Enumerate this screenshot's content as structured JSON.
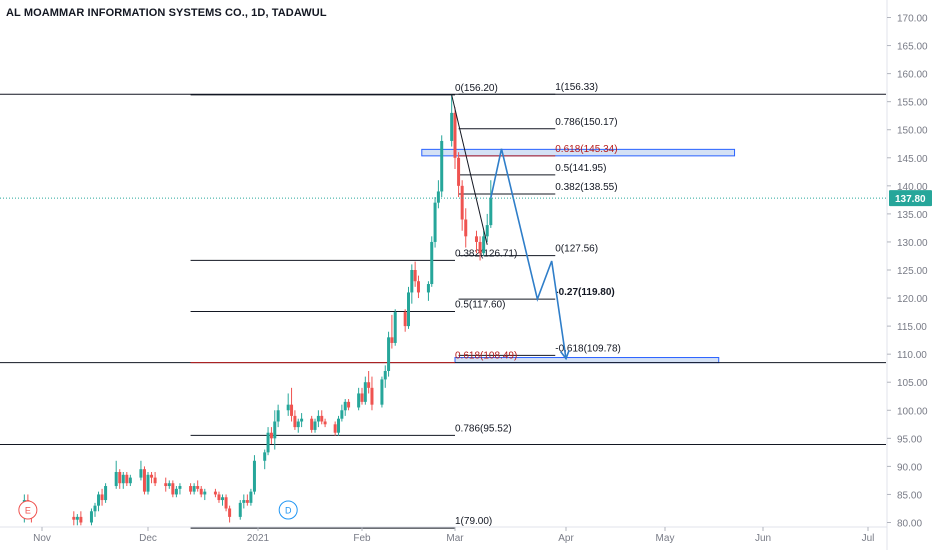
{
  "chart_title": "AL MOAMMAR INFORMATION SYSTEMS CO., 1D, TADAWUL",
  "colors": {
    "up": "#26a69a",
    "down": "#ef5350",
    "fib_line": "#131722",
    "fib_highlight": "#b71c1c",
    "zone_fill": "#c5d7f2",
    "zone_stroke": "#2962ff",
    "projection": "#2f7ec9",
    "price_tag": "#26a69a",
    "axis_text": "#787b86",
    "event_e": "#ef5350",
    "event_d": "#2196f3"
  },
  "chart_data": {
    "type": "candlestick",
    "y_axis": {
      "min": 80,
      "max": 172,
      "ticks": [
        "170.00",
        "165.00",
        "160.00",
        "155.00",
        "150.00",
        "145.00",
        "140.00",
        "135.00",
        "130.00",
        "125.00",
        "120.00",
        "115.00",
        "110.00",
        "105.00",
        "100.00",
        "95.00",
        "90.00",
        "85.00",
        "80.00"
      ],
      "tick_values": [
        170,
        165,
        160,
        155,
        150,
        145,
        140,
        135,
        130,
        125,
        120,
        115,
        110,
        105,
        100,
        95,
        90,
        85,
        80
      ]
    },
    "x_axis": {
      "labels": [
        "Nov",
        "Dec",
        "2021",
        "Feb",
        "Mar",
        "Apr",
        "May",
        "Jun",
        "Jul"
      ],
      "label_dates": [
        "2020-11-01",
        "2020-12-01",
        "2021-01-01",
        "2021-02-01",
        "2021-03-01",
        "2021-04-01",
        "2021-05-01",
        "2021-06-01",
        "2021-07-01"
      ]
    },
    "last_price": {
      "value": 137.8,
      "label": "137.80"
    },
    "candles": [
      {
        "d": "2020-10-27",
        "o": 82,
        "h": 85,
        "l": 80,
        "c": 84
      },
      {
        "d": "2020-10-28",
        "o": 84,
        "h": 85,
        "l": 81,
        "c": 82
      },
      {
        "d": "2020-10-29",
        "o": 82,
        "h": 83,
        "l": 80,
        "c": 81
      },
      {
        "d": "2020-11-10",
        "o": 81,
        "h": 82,
        "l": 79.5,
        "c": 80.5
      },
      {
        "d": "2020-11-11",
        "o": 80.5,
        "h": 81.5,
        "l": 79.5,
        "c": 81
      },
      {
        "d": "2020-11-12",
        "o": 81,
        "h": 82,
        "l": 79.5,
        "c": 80
      },
      {
        "d": "2020-11-15",
        "o": 80,
        "h": 82.5,
        "l": 79.5,
        "c": 82
      },
      {
        "d": "2020-11-16",
        "o": 82,
        "h": 83.5,
        "l": 81,
        "c": 83
      },
      {
        "d": "2020-11-17",
        "o": 83,
        "h": 85.5,
        "l": 82,
        "c": 85
      },
      {
        "d": "2020-11-18",
        "o": 85,
        "h": 86,
        "l": 83,
        "c": 84
      },
      {
        "d": "2020-11-19",
        "o": 84,
        "h": 87,
        "l": 83.5,
        "c": 86.5
      },
      {
        "d": "2020-11-22",
        "o": 86.5,
        "h": 91,
        "l": 86,
        "c": 89
      },
      {
        "d": "2020-11-23",
        "o": 89,
        "h": 89.5,
        "l": 86,
        "c": 87
      },
      {
        "d": "2020-11-24",
        "o": 87,
        "h": 89,
        "l": 86,
        "c": 88.5
      },
      {
        "d": "2020-11-25",
        "o": 88.5,
        "h": 89,
        "l": 86.5,
        "c": 87
      },
      {
        "d": "2020-11-26",
        "o": 87,
        "h": 88.5,
        "l": 86.5,
        "c": 88
      },
      {
        "d": "2020-11-29",
        "o": 88,
        "h": 91,
        "l": 87.5,
        "c": 89.5
      },
      {
        "d": "2020-11-30",
        "o": 89.5,
        "h": 90,
        "l": 85,
        "c": 85.5
      },
      {
        "d": "2020-12-01",
        "o": 85.5,
        "h": 89,
        "l": 85,
        "c": 88.5
      },
      {
        "d": "2020-12-02",
        "o": 88.5,
        "h": 89,
        "l": 87,
        "c": 88
      },
      {
        "d": "2020-12-03",
        "o": 88,
        "h": 89,
        "l": 86.5,
        "c": 87
      },
      {
        "d": "2020-12-06",
        "o": 87,
        "h": 88,
        "l": 85.5,
        "c": 86.5
      },
      {
        "d": "2020-12-07",
        "o": 86.5,
        "h": 87.5,
        "l": 86,
        "c": 87
      },
      {
        "d": "2020-12-08",
        "o": 87,
        "h": 87.5,
        "l": 84.5,
        "c": 85
      },
      {
        "d": "2020-12-09",
        "o": 85,
        "h": 86.5,
        "l": 84.5,
        "c": 86
      },
      {
        "d": "2020-12-10",
        "o": 86,
        "h": 87,
        "l": 85,
        "c": 86.5
      },
      {
        "d": "2020-12-13",
        "o": 86.5,
        "h": 87,
        "l": 85,
        "c": 85.5
      },
      {
        "d": "2020-12-14",
        "o": 85.5,
        "h": 87,
        "l": 85,
        "c": 86.5
      },
      {
        "d": "2020-12-15",
        "o": 86.5,
        "h": 87.5,
        "l": 85.5,
        "c": 86
      },
      {
        "d": "2020-12-16",
        "o": 86,
        "h": 86.5,
        "l": 84.5,
        "c": 85
      },
      {
        "d": "2020-12-17",
        "o": 85,
        "h": 86,
        "l": 84,
        "c": 85.5
      },
      {
        "d": "2020-12-20",
        "o": 85.5,
        "h": 86,
        "l": 84.5,
        "c": 85
      },
      {
        "d": "2020-12-21",
        "o": 85,
        "h": 85.5,
        "l": 83.5,
        "c": 84
      },
      {
        "d": "2020-12-22",
        "o": 84,
        "h": 85,
        "l": 83,
        "c": 84.5
      },
      {
        "d": "2020-12-23",
        "o": 84.5,
        "h": 85,
        "l": 82,
        "c": 82.5
      },
      {
        "d": "2020-12-24",
        "o": 82.5,
        "h": 83,
        "l": 80,
        "c": 81
      },
      {
        "d": "2020-12-27",
        "o": 81,
        "h": 84,
        "l": 80.5,
        "c": 83.5
      },
      {
        "d": "2020-12-28",
        "o": 83.5,
        "h": 85,
        "l": 82.5,
        "c": 84
      },
      {
        "d": "2020-12-29",
        "o": 84,
        "h": 85,
        "l": 83,
        "c": 83.5
      },
      {
        "d": "2020-12-30",
        "o": 83.5,
        "h": 86,
        "l": 83,
        "c": 85.5
      },
      {
        "d": "2020-12-31",
        "o": 85.5,
        "h": 92,
        "l": 85,
        "c": 91
      },
      {
        "d": "2021-01-03",
        "o": 91,
        "h": 93,
        "l": 89.5,
        "c": 92.5
      },
      {
        "d": "2021-01-04",
        "o": 92.5,
        "h": 97,
        "l": 92,
        "c": 96
      },
      {
        "d": "2021-01-05",
        "o": 96,
        "h": 97,
        "l": 94,
        "c": 95
      },
      {
        "d": "2021-01-06",
        "o": 95,
        "h": 100,
        "l": 93,
        "c": 98
      },
      {
        "d": "2021-01-07",
        "o": 98,
        "h": 101,
        "l": 97,
        "c": 100
      },
      {
        "d": "2021-01-10",
        "o": 100,
        "h": 103,
        "l": 99,
        "c": 101
      },
      {
        "d": "2021-01-11",
        "o": 101,
        "h": 104,
        "l": 98,
        "c": 99
      },
      {
        "d": "2021-01-12",
        "o": 99,
        "h": 100,
        "l": 96.5,
        "c": 97
      },
      {
        "d": "2021-01-13",
        "o": 97,
        "h": 98.5,
        "l": 96,
        "c": 98
      },
      {
        "d": "2021-01-14",
        "o": 98,
        "h": 99.5,
        "l": 97,
        "c": 98.5
      },
      {
        "d": "2021-01-17",
        "o": 98.5,
        "h": 99,
        "l": 96,
        "c": 96.5
      },
      {
        "d": "2021-01-18",
        "o": 96.5,
        "h": 98.5,
        "l": 96,
        "c": 98
      },
      {
        "d": "2021-01-19",
        "o": 98,
        "h": 100,
        "l": 97,
        "c": 99
      },
      {
        "d": "2021-01-20",
        "o": 99,
        "h": 100,
        "l": 97.5,
        "c": 98
      },
      {
        "d": "2021-01-21",
        "o": 98,
        "h": 98.5,
        "l": 97,
        "c": 97.5
      },
      {
        "d": "2021-01-24",
        "o": 97.5,
        "h": 98,
        "l": 95.5,
        "c": 96
      },
      {
        "d": "2021-01-25",
        "o": 96,
        "h": 99,
        "l": 95.5,
        "c": 98.5
      },
      {
        "d": "2021-01-26",
        "o": 98.5,
        "h": 101,
        "l": 98,
        "c": 100
      },
      {
        "d": "2021-01-27",
        "o": 100,
        "h": 102,
        "l": 99,
        "c": 101.5
      },
      {
        "d": "2021-01-28",
        "o": 101.5,
        "h": 102,
        "l": 100,
        "c": 100.5
      },
      {
        "d": "2021-01-31",
        "o": 100.5,
        "h": 104,
        "l": 100,
        "c": 103
      },
      {
        "d": "2021-02-01",
        "o": 103,
        "h": 104,
        "l": 101,
        "c": 101.5
      },
      {
        "d": "2021-02-02",
        "o": 101.5,
        "h": 106,
        "l": 101,
        "c": 105
      },
      {
        "d": "2021-02-03",
        "o": 105,
        "h": 107,
        "l": 103,
        "c": 104
      },
      {
        "d": "2021-02-04",
        "o": 104,
        "h": 106,
        "l": 100,
        "c": 101
      },
      {
        "d": "2021-02-07",
        "o": 101,
        "h": 106,
        "l": 100.5,
        "c": 105.5
      },
      {
        "d": "2021-02-08",
        "o": 105.5,
        "h": 108,
        "l": 104,
        "c": 107
      },
      {
        "d": "2021-02-09",
        "o": 107,
        "h": 114,
        "l": 106,
        "c": 113
      },
      {
        "d": "2021-02-10",
        "o": 113,
        "h": 117,
        "l": 111,
        "c": 112
      },
      {
        "d": "2021-02-11",
        "o": 112,
        "h": 118,
        "l": 111.5,
        "c": 117.5
      },
      {
        "d": "2021-02-14",
        "o": 117.5,
        "h": 118,
        "l": 114,
        "c": 115
      },
      {
        "d": "2021-02-15",
        "o": 115,
        "h": 122,
        "l": 114.5,
        "c": 121
      },
      {
        "d": "2021-02-16",
        "o": 121,
        "h": 126,
        "l": 119,
        "c": 125
      },
      {
        "d": "2021-02-17",
        "o": 125,
        "h": 126.5,
        "l": 122,
        "c": 123
      },
      {
        "d": "2021-02-18",
        "o": 123,
        "h": 124,
        "l": 120,
        "c": 121
      },
      {
        "d": "2021-02-21",
        "o": 121,
        "h": 123,
        "l": 119.5,
        "c": 122.5
      },
      {
        "d": "2021-02-22",
        "o": 122.5,
        "h": 131,
        "l": 122,
        "c": 130
      },
      {
        "d": "2021-02-23",
        "o": 130,
        "h": 138,
        "l": 129,
        "c": 137
      },
      {
        "d": "2021-02-24",
        "o": 137,
        "h": 141,
        "l": 136,
        "c": 139
      },
      {
        "d": "2021-02-25",
        "o": 139,
        "h": 149,
        "l": 138,
        "c": 148
      },
      {
        "d": "2021-02-28",
        "o": 148,
        "h": 156.2,
        "l": 147,
        "c": 153
      },
      {
        "d": "2021-03-01",
        "o": 153,
        "h": 154,
        "l": 143,
        "c": 145
      },
      {
        "d": "2021-03-02",
        "o": 145,
        "h": 146,
        "l": 138,
        "c": 140
      },
      {
        "d": "2021-03-03",
        "o": 140,
        "h": 141,
        "l": 132,
        "c": 134
      },
      {
        "d": "2021-03-04",
        "o": 134,
        "h": 136,
        "l": 129,
        "c": 131
      },
      {
        "d": "2021-03-07",
        "o": 131,
        "h": 132,
        "l": 128,
        "c": 130
      },
      {
        "d": "2021-03-08",
        "o": 130,
        "h": 131,
        "l": 126.7,
        "c": 128
      },
      {
        "d": "2021-03-09",
        "o": 128,
        "h": 132,
        "l": 127.5,
        "c": 131
      },
      {
        "d": "2021-03-10",
        "o": 131,
        "h": 135,
        "l": 130,
        "c": 133
      },
      {
        "d": "2021-03-11",
        "o": 133,
        "h": 141,
        "l": 132.5,
        "c": 137.8
      }
    ],
    "fib_retracements": [
      {
        "name": "upper-fib",
        "x_start": "2021-03-02",
        "x_end": "2021-03-29",
        "levels": [
          {
            "value": 156.33,
            "label": "1(156.33)",
            "label_x": "2021-03-29",
            "bold": false,
            "highlight": false
          },
          {
            "value": 150.17,
            "label": "0.786(150.17)",
            "label_x": "2021-03-29",
            "bold": false,
            "highlight": false
          },
          {
            "value": 145.34,
            "label": "0.618(145.34)",
            "label_x": "2021-03-29",
            "bold": false,
            "highlight": true
          },
          {
            "value": 141.95,
            "label": "0.5(141.95)",
            "label_x": "2021-03-29",
            "bold": false,
            "highlight": false
          },
          {
            "value": 138.55,
            "label": "0.382(138.55)",
            "label_x": "2021-03-29",
            "bold": false,
            "highlight": false
          },
          {
            "value": 127.56,
            "label": "0(127.56)",
            "label_x": "2021-03-29",
            "bold": false,
            "highlight": false
          },
          {
            "value": 119.8,
            "label": "-0.27(119.80)",
            "label_x": "2021-03-29",
            "bold": true,
            "highlight": false
          },
          {
            "value": 109.78,
            "label": "-0.618(109.78)",
            "label_x": "2021-03-29",
            "bold": false,
            "highlight": false
          }
        ]
      },
      {
        "name": "lower-fib",
        "x_start": "2020-12-13",
        "x_end": "2021-03-01",
        "levels": [
          {
            "value": 156.2,
            "label": "0(156.20)",
            "label_x": "2021-03-01",
            "bold": false,
            "highlight": false
          },
          {
            "value": 126.71,
            "label": "0.382(126.71)",
            "label_x": "2021-03-01",
            "bold": false,
            "highlight": false
          },
          {
            "value": 117.6,
            "label": "0.5(117.60)",
            "label_x": "2021-03-01",
            "bold": false,
            "highlight": false
          },
          {
            "value": 108.49,
            "label": "0.618(108.49)",
            "label_x": "2021-03-01",
            "bold": false,
            "highlight": true
          },
          {
            "value": 95.52,
            "label": "0.786(95.52)",
            "label_x": "2021-03-01",
            "bold": false,
            "highlight": false
          },
          {
            "value": 79.0,
            "label": "1(79.00)",
            "label_x": "2021-03-01",
            "bold": false,
            "highlight": false
          }
        ]
      }
    ],
    "horizontal_lines": [
      156.33,
      108.49,
      93.9
    ],
    "zones": [
      {
        "name": "upper-zone",
        "x_start": "2021-02-19",
        "x_end": "2021-05-23",
        "y_low": 145.34,
        "y_high": 146.5
      },
      {
        "name": "lower-zone",
        "x_start": "2021-03-01",
        "x_end": "2021-05-18",
        "y_low": 108.49,
        "y_high": 109.4
      }
    ],
    "diagonal": {
      "from": {
        "d": "2021-02-28",
        "v": 156.2
      },
      "to": {
        "d": "2021-03-10",
        "v": 129.5
      }
    },
    "projection_path": [
      {
        "d": "2021-03-11",
        "v": 137.8
      },
      {
        "d": "2021-03-14",
        "v": 146.6
      },
      {
        "d": "2021-03-24",
        "v": 119.8
      },
      {
        "d": "2021-03-28",
        "v": 126.6
      },
      {
        "d": "2021-04-01",
        "v": 109.2
      }
    ],
    "events": [
      {
        "letter": "E",
        "d": "2020-10-28",
        "kind": "earnings"
      },
      {
        "letter": "D",
        "d": "2021-01-10",
        "kind": "dividend"
      }
    ]
  }
}
